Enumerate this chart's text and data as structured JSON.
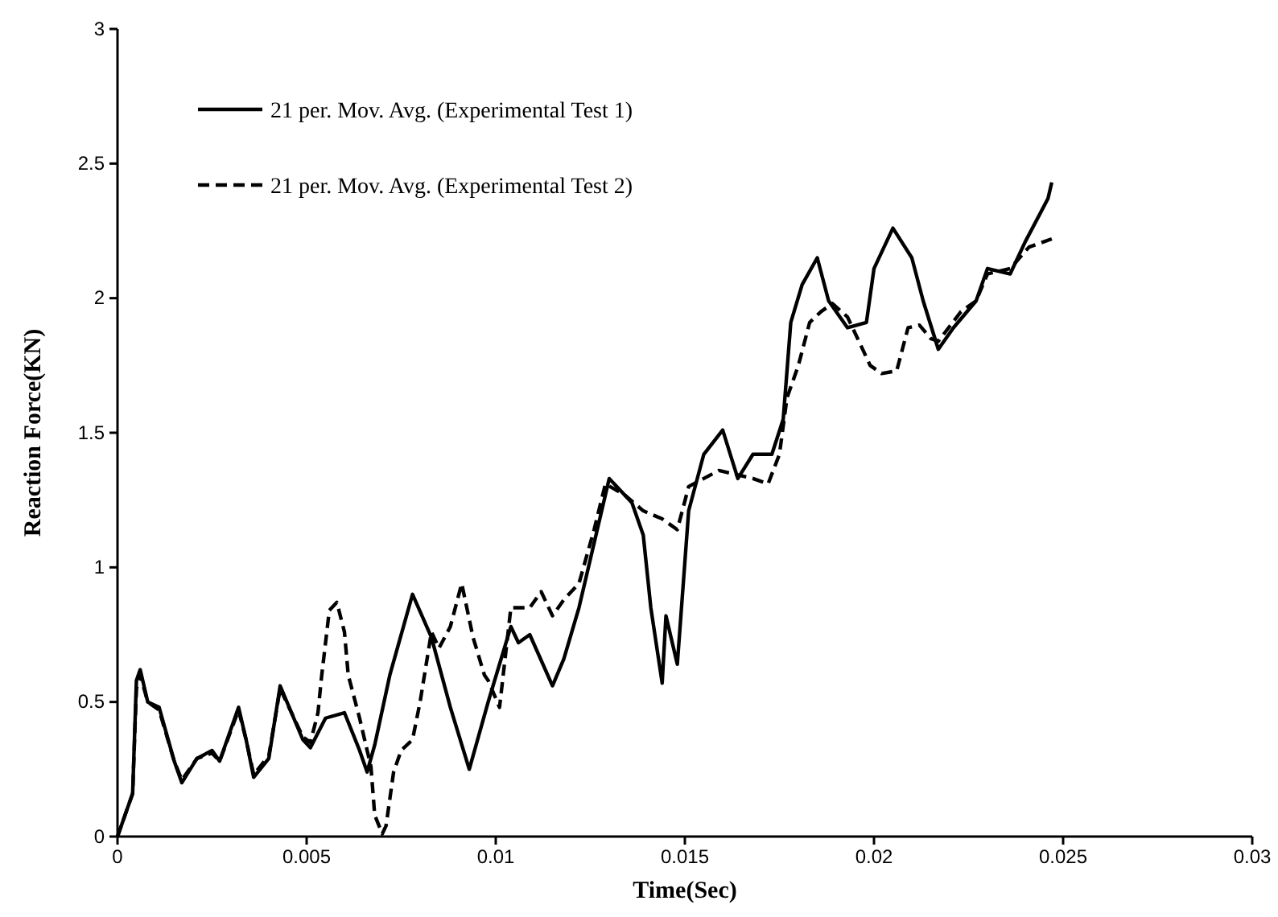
{
  "chart_data": {
    "type": "line",
    "xlabel": "Time(Sec)",
    "ylabel": "Reaction Force(KN)",
    "xlim": [
      0,
      0.03
    ],
    "xticks": [
      0,
      0.005,
      0.01,
      0.015,
      0.02,
      0.025,
      0.03
    ],
    "ylim": [
      0,
      3
    ],
    "yticks": [
      0,
      0.5,
      1,
      1.5,
      2,
      2.5,
      3
    ],
    "grid": false,
    "legend": "top left",
    "marker": "none",
    "series": [
      {
        "name": "21 per. Mov. Avg. (Experimental Test 1)",
        "color": "#000000",
        "line_style": "solid",
        "x": [
          0,
          0.0004,
          0.0005,
          0.0006,
          0.0008,
          0.0011,
          0.0015,
          0.0017,
          0.0021,
          0.0025,
          0.0027,
          0.0032,
          0.0034,
          0.0036,
          0.004,
          0.0043,
          0.0049,
          0.0051,
          0.0055,
          0.006,
          0.0064,
          0.0066,
          0.0068,
          0.0072,
          0.0078,
          0.0083,
          0.0088,
          0.0093,
          0.0098,
          0.0104,
          0.0106,
          0.0109,
          0.0115,
          0.0118,
          0.0122,
          0.0126,
          0.013,
          0.0136,
          0.0139,
          0.0141,
          0.0144,
          0.0145,
          0.0148,
          0.015,
          0.0151,
          0.0155,
          0.016,
          0.0164,
          0.0168,
          0.0173,
          0.0176,
          0.0178,
          0.0181,
          0.0185,
          0.0188,
          0.0193,
          0.0198,
          0.02,
          0.0205,
          0.021,
          0.0213,
          0.0217,
          0.0221,
          0.0227,
          0.023,
          0.0236,
          0.024,
          0.0246,
          0.0247
        ],
        "values": [
          0,
          0.16,
          0.58,
          0.62,
          0.5,
          0.48,
          0.28,
          0.2,
          0.29,
          0.32,
          0.28,
          0.48,
          0.36,
          0.22,
          0.29,
          0.56,
          0.36,
          0.33,
          0.44,
          0.46,
          0.32,
          0.24,
          0.34,
          0.6,
          0.9,
          0.74,
          0.48,
          0.25,
          0.5,
          0.78,
          0.72,
          0.75,
          0.56,
          0.66,
          0.85,
          1.09,
          1.33,
          1.24,
          1.12,
          0.85,
          0.57,
          0.82,
          0.64,
          1.02,
          1.21,
          1.42,
          1.51,
          1.33,
          1.42,
          1.42,
          1.55,
          1.91,
          2.05,
          2.15,
          1.99,
          1.89,
          1.91,
          2.11,
          2.26,
          2.15,
          1.99,
          1.81,
          1.89,
          1.99,
          2.11,
          2.09,
          2.21,
          2.37,
          2.43
        ]
      },
      {
        "name": "21 per. Mov. Avg. (Experimental Test 2)",
        "color": "#000000",
        "line_style": "dashed",
        "x": [
          0,
          0.0004,
          0.0005,
          0.0006,
          0.0008,
          0.0011,
          0.0015,
          0.0017,
          0.0021,
          0.0025,
          0.0027,
          0.0032,
          0.0034,
          0.0036,
          0.004,
          0.0043,
          0.0049,
          0.0051,
          0.0053,
          0.0054,
          0.0056,
          0.0058,
          0.006,
          0.0061,
          0.0064,
          0.0067,
          0.0068,
          0.007,
          0.0071,
          0.0073,
          0.0075,
          0.0078,
          0.008,
          0.0083,
          0.0085,
          0.0088,
          0.0091,
          0.0094,
          0.0097,
          0.0098,
          0.0101,
          0.0104,
          0.0109,
          0.0112,
          0.0115,
          0.0118,
          0.0122,
          0.0126,
          0.0129,
          0.0134,
          0.0139,
          0.0144,
          0.0148,
          0.0151,
          0.0155,
          0.0159,
          0.0168,
          0.0172,
          0.0175,
          0.0177,
          0.018,
          0.0183,
          0.0186,
          0.0189,
          0.0193,
          0.0196,
          0.0199,
          0.0202,
          0.0206,
          0.0209,
          0.0212,
          0.0215,
          0.0217,
          0.0223,
          0.0227,
          0.023,
          0.0236,
          0.0241,
          0.0247
        ],
        "values": [
          0,
          0.16,
          0.55,
          0.6,
          0.5,
          0.47,
          0.28,
          0.21,
          0.29,
          0.31,
          0.28,
          0.47,
          0.36,
          0.23,
          0.3,
          0.55,
          0.37,
          0.35,
          0.46,
          0.6,
          0.84,
          0.87,
          0.76,
          0.6,
          0.44,
          0.26,
          0.08,
          0.01,
          0.04,
          0.24,
          0.32,
          0.36,
          0.5,
          0.76,
          0.7,
          0.78,
          0.94,
          0.74,
          0.6,
          0.58,
          0.48,
          0.85,
          0.85,
          0.91,
          0.82,
          0.88,
          0.94,
          1.14,
          1.31,
          1.27,
          1.21,
          1.18,
          1.14,
          1.3,
          1.33,
          1.36,
          1.33,
          1.31,
          1.42,
          1.63,
          1.75,
          1.91,
          1.95,
          1.98,
          1.93,
          1.84,
          1.75,
          1.72,
          1.73,
          1.89,
          1.9,
          1.85,
          1.84,
          1.95,
          1.99,
          2.09,
          2.11,
          2.19,
          2.22
        ]
      }
    ]
  }
}
